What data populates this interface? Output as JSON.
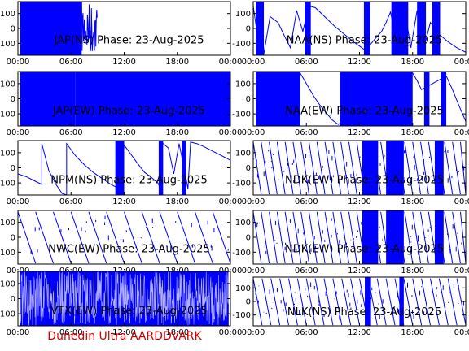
{
  "figure": {
    "footer_text": "Dunedin Ultra AARDDVARK",
    "footer_color": "#d40000",
    "trace_color": "#0000ff"
  },
  "chart_data": [
    {
      "type": "line",
      "title": "JAP(NS) Phase: 23-Aug-2025",
      "x_ticks": [
        "00:00",
        "06:00",
        "12:00",
        "18:00",
        "00:00"
      ],
      "y_ticks": [
        "100",
        "0",
        "-100"
      ],
      "xlim": [
        0,
        24
      ],
      "ylim": [
        -180,
        180
      ],
      "pattern": "dense",
      "segments": [
        [
          0.25,
          7.2
        ]
      ],
      "series": [
        {
          "x": [],
          "y": []
        }
      ]
    },
    {
      "type": "line",
      "title": "NAA(NS) Phase: 23-Aug-2025",
      "x_ticks": [
        "00:00",
        "06:00",
        "12:00",
        "18:00",
        "00:00"
      ],
      "y_ticks": [
        "100",
        "0",
        "-100"
      ],
      "xlim": [
        0,
        24
      ],
      "ylim": [
        -180,
        180
      ],
      "pattern": "mixed",
      "segments": [
        [
          0.3,
          1.2
        ],
        [
          5.8,
          6.5
        ],
        [
          12.5,
          13.2
        ],
        [
          15.6,
          17.5
        ],
        [
          18.5,
          19.5
        ],
        [
          20.2,
          21.1
        ]
      ],
      "series": [
        {
          "x": [
            0,
            0.6,
            1.2,
            1.9,
            2.8,
            3.6,
            4.2,
            4.9,
            5.6,
            6.3,
            7.0,
            7.7,
            8.4,
            9.1,
            9.8,
            10.5,
            11.2,
            11.8,
            12.5,
            13.2,
            13.9,
            14.5,
            15.0,
            15.5,
            16.2,
            17.0,
            17.8,
            18.5,
            19.2,
            20.0,
            21.0,
            22.0,
            23.0,
            24.0
          ],
          "y": [
            150,
            -100,
            -170,
            80,
            40,
            -60,
            -130,
            120,
            -20,
            150,
            140,
            100,
            60,
            20,
            -15,
            -50,
            -85,
            -110,
            -140,
            -110,
            -60,
            -20,
            40,
            110,
            -100,
            160,
            -130,
            120,
            -150,
            40,
            -40,
            -90,
            -130,
            -160
          ]
        }
      ]
    },
    {
      "type": "line",
      "title": "JAP(EW) Phase: 23-Aug-2025",
      "x_ticks": [
        "00:00",
        "06:00",
        "12:00",
        "18:00",
        "00:00"
      ],
      "y_ticks": [
        "100",
        "0",
        "-100"
      ],
      "xlim": [
        0,
        24
      ],
      "ylim": [
        -180,
        180
      ],
      "pattern": "dense",
      "segments": [
        [
          0.25,
          6.5
        ],
        [
          6.5,
          24
        ]
      ],
      "series": [
        {
          "x": [],
          "y": []
        }
      ]
    },
    {
      "type": "line",
      "title": "NAA(EW) Phase: 23-Aug-2025",
      "x_ticks": [
        "00:00",
        "06:00",
        "12:00",
        "18:00",
        "00:00"
      ],
      "y_ticks": [
        "100",
        "0",
        "-100"
      ],
      "xlim": [
        0,
        24
      ],
      "ylim": [
        -180,
        180
      ],
      "pattern": "mixed",
      "segments": [
        [
          0.3,
          5.3
        ],
        [
          9.8,
          18.0
        ],
        [
          19.3,
          19.9
        ],
        [
          21.2,
          21.8
        ]
      ],
      "series": [
        {
          "x": [
            5.3,
            6.0,
            6.8,
            7.5,
            8.2,
            8.9,
            9.6,
            18.0,
            18.5,
            19.0,
            21.8,
            22.5,
            23.2,
            24.0
          ],
          "y": [
            170,
            100,
            20,
            -40,
            -90,
            -140,
            -170,
            170,
            120,
            60,
            150,
            60,
            -40,
            -150
          ]
        }
      ]
    },
    {
      "type": "line",
      "title": "NPM(NS) Phase: 23-Aug-2025",
      "x_ticks": [
        "00:00",
        "06:00",
        "12:00",
        "18:00",
        "00:00"
      ],
      "y_ticks": [
        "100",
        "0",
        "-100"
      ],
      "xlim": [
        0,
        24
      ],
      "ylim": [
        -180,
        180
      ],
      "pattern": "sparse",
      "segments": [
        [
          11.0,
          12.0
        ],
        [
          15.9,
          16.4
        ],
        [
          18.5,
          19.0
        ]
      ],
      "series": [
        {
          "x": [
            0,
            1.0,
            2.0,
            2.7,
            2.7,
            3.5,
            4.3,
            5.0,
            5.5,
            5.5,
            6.5,
            7.5,
            8.5,
            9.5,
            10.5,
            11.5,
            12.0,
            13.5,
            14.3,
            15.0,
            15.8,
            16.2,
            16.2,
            17.0,
            17.6,
            18.2,
            18.8,
            19.2,
            19.5,
            20.2,
            21.0,
            22.0,
            23.0,
            24.0
          ],
          "y": [
            -40,
            -60,
            -90,
            -110,
            160,
            -20,
            -110,
            -170,
            -180,
            160,
            80,
            20,
            -30,
            -70,
            -110,
            -140,
            150,
            30,
            -30,
            -60,
            -100,
            -150,
            170,
            130,
            -40,
            160,
            -10,
            -140,
            170,
            160,
            140,
            110,
            80,
            50
          ]
        }
      ]
    },
    {
      "type": "line",
      "title": "NDK(EW) Phase: 23-Aug-2025",
      "x_ticks": [
        "00:00",
        "06:00",
        "12:00",
        "18:00",
        "00:00"
      ],
      "y_ticks": [
        "100",
        "0",
        "-100"
      ],
      "xlim": [
        0,
        24
      ],
      "ylim": [
        -180,
        180
      ],
      "pattern": "sawtooth",
      "period": 0.9,
      "segments": [
        [
          12.3,
          14.1
        ],
        [
          15.0,
          17.0
        ],
        [
          20.5,
          21.5
        ]
      ],
      "series": [
        {
          "x": [],
          "y": []
        }
      ]
    },
    {
      "type": "line",
      "title": "NWC(EW) Phase: 23-Aug-2025",
      "x_ticks": [
        "00:00",
        "06:00",
        "12:00",
        "18:00",
        "00:00"
      ],
      "y_ticks": [
        "100",
        "0",
        "-100"
      ],
      "xlim": [
        0,
        24
      ],
      "ylim": [
        -180,
        180
      ],
      "pattern": "sawtooth",
      "period": 2.0,
      "segments": [],
      "series": [
        {
          "x": [],
          "y": []
        }
      ]
    },
    {
      "type": "line",
      "title": "NDK(EW) Phase: 23-Aug-2025",
      "x_ticks": [
        "00:00",
        "06:00",
        "12:00",
        "18:00",
        "00:00"
      ],
      "y_ticks": [
        "100",
        "0",
        "-100"
      ],
      "xlim": [
        0,
        24
      ],
      "ylim": [
        -180,
        180
      ],
      "pattern": "sawtooth",
      "period": 0.9,
      "segments": [
        [
          12.3,
          14.1
        ],
        [
          15.0,
          17.0
        ],
        [
          20.5,
          21.5
        ]
      ],
      "series": [
        {
          "x": [],
          "y": []
        }
      ]
    },
    {
      "type": "line",
      "title": "VTX(EW) Phase: 23-Aug-2025",
      "x_ticks": [
        "00:00",
        "06:00",
        "12:00",
        "18:00",
        "00:00"
      ],
      "y_ticks": [
        "100",
        "0",
        "-100"
      ],
      "xlim": [
        0,
        24
      ],
      "ylim": [
        -180,
        180
      ],
      "pattern": "dense",
      "segments": [
        [
          0.2,
          23.8
        ]
      ],
      "series": [
        {
          "x": [],
          "y": []
        }
      ]
    },
    {
      "type": "line",
      "title": "NLK(NS) Phase: 23-Aug-2025",
      "x_ticks": [
        "00:00",
        "06:00",
        "12:00",
        "18:00",
        "00:00"
      ],
      "y_ticks": [
        "100",
        "0",
        "-100"
      ],
      "xlim": [
        0,
        24
      ],
      "ylim": [
        -180,
        180
      ],
      "pattern": "sawtooth",
      "period": 1.0,
      "segments": [
        [
          12.6,
          13.3
        ],
        [
          16.5,
          17.0
        ]
      ],
      "series": [
        {
          "x": [],
          "y": []
        }
      ]
    }
  ]
}
